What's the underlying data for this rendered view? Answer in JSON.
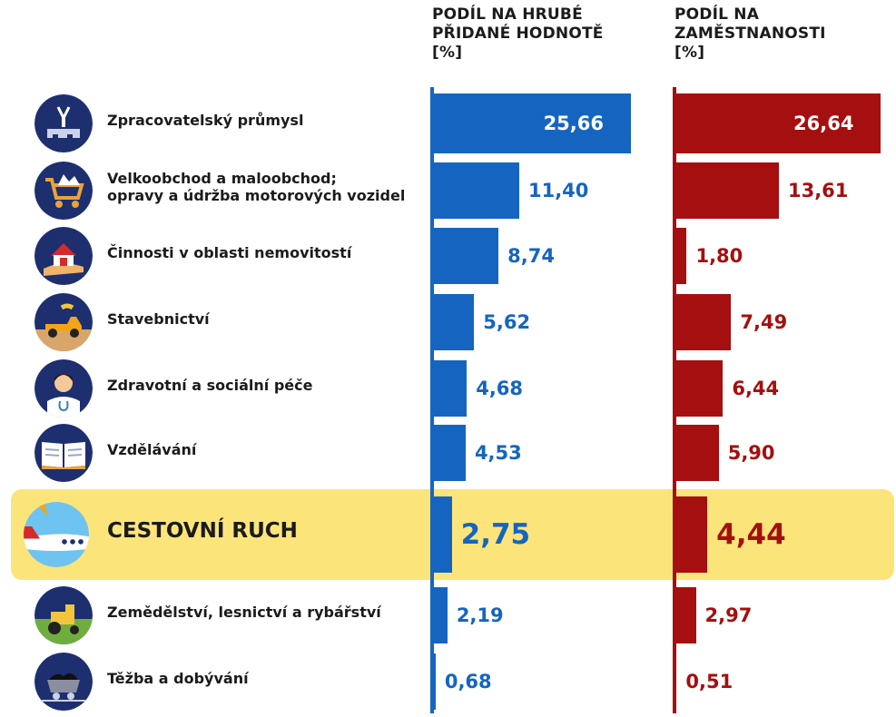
{
  "colors": {
    "gva": "#1565c0",
    "employment": "#a50f0f",
    "highlight": "#fbe57a",
    "icon_bg": "#1d2f6f"
  },
  "headers": {
    "gva_line1": "PODÍL NA HRUBÉ",
    "gva_line2": "PŘIDANÉ HODNOTĚ",
    "gva_unit": "[%]",
    "emp_line1": "PODÍL NA",
    "emp_line2": "ZAMĚSTNANOSTI",
    "emp_unit": "[%]"
  },
  "chart_data": {
    "type": "bar",
    "orientation": "horizontal",
    "categories": [
      "Zpracovatelský průmysl",
      "Velkoobchod a maloobchod; opravy a údržba motorových vozidel",
      "Činnosti v oblasti nemovitostí",
      "Stavebnictví",
      "Zdravotní a sociální péče",
      "Vzdělávání",
      "CESTOVNÍ RUCH",
      "Zemědělství, lesnictví a rybářství",
      "Těžba a dobývání"
    ],
    "category_lines": [
      [
        "Zpracovatelský průmysl"
      ],
      [
        "Velkoobchod a maloobchod;",
        "opravy a údržba motorových vozidel"
      ],
      [
        "Činnosti v oblasti nemovitostí"
      ],
      [
        "Stavebnictví"
      ],
      [
        "Zdravotní a sociální péče"
      ],
      [
        "Vzdělávání"
      ],
      [
        "CESTOVNÍ RUCH"
      ],
      [
        "Zemědělství, lesnictví a rybářství"
      ],
      [
        "Těžba a dobývání"
      ]
    ],
    "icons": [
      "factory-icon",
      "shopping-cart-icon",
      "house-in-hand-icon",
      "dump-truck-icon",
      "doctor-icon",
      "book-icon",
      "airplane-icon",
      "tractor-icon",
      "mine-cart-icon"
    ],
    "highlighted_category": "CESTOVNÍ RUCH",
    "series": [
      {
        "name": "PODÍL NA HRUBÉ PŘIDANÉ HODNOTĚ [%]",
        "values": [
          25.66,
          11.4,
          8.74,
          5.62,
          4.68,
          4.53,
          2.75,
          2.19,
          0.68
        ],
        "labels": [
          "25,66",
          "11,40",
          "8,74",
          "5,62",
          "4,68",
          "4,53",
          "2,75",
          "2,19",
          "0,68"
        ]
      },
      {
        "name": "PODÍL NA ZAMĚSTNANOSTI [%]",
        "values": [
          26.64,
          13.61,
          1.8,
          7.49,
          6.44,
          5.9,
          4.44,
          2.97,
          0.51
        ],
        "labels": [
          "26,64",
          "13,61",
          "1,80",
          "7,49",
          "6,44",
          "5,90",
          "4,44",
          "2,97",
          "0,51"
        ]
      }
    ],
    "xlim": [
      0,
      26.64
    ],
    "unit": "%"
  }
}
